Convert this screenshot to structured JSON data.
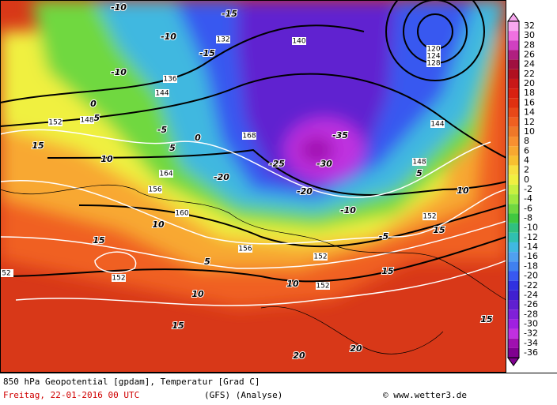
{
  "map": {
    "title": "850 hPa Geopotential [gpdam], Temperatur [Grad C]",
    "date": "Freitag, 22-01-2016  00 UTC",
    "model": "(GFS)  (Analyse)",
    "credit": "© www.wetter3.de",
    "scale": {
      "labels": [
        "32",
        "30",
        "28",
        "26",
        "24",
        "22",
        "20",
        "18",
        "16",
        "14",
        "12",
        "10",
        "8",
        "6",
        "4",
        "2",
        "0",
        "-2",
        "-4",
        "-6",
        "-8",
        "-10",
        "-12",
        "-14",
        "-16",
        "-18",
        "-20",
        "-22",
        "-24",
        "-26",
        "-28",
        "-30",
        "-32",
        "-34",
        "-36"
      ],
      "colors": [
        "#f8a8f0",
        "#f070e0",
        "#d040c0",
        "#b02080",
        "#a01040",
        "#b01020",
        "#c81818",
        "#d82010",
        "#e03010",
        "#e84818",
        "#f06020",
        "#f07828",
        "#f89030",
        "#f8a830",
        "#f8c030",
        "#f8e040",
        "#f0f040",
        "#c8f040",
        "#a0e840",
        "#70d840",
        "#40c840",
        "#30c080",
        "#30c0b0",
        "#40b8e0",
        "#50a0f0",
        "#4080f0",
        "#3858f0",
        "#3030e0",
        "#4020d0",
        "#6020d0",
        "#8020d8",
        "#a020e0",
        "#c030e0",
        "#a010b0",
        "#800090"
      ]
    },
    "temperature_labels": [
      "-10",
      "-15",
      "-10",
      "-15",
      "-10",
      "-5",
      "0",
      "-5",
      "0",
      "5",
      "-20",
      "-25",
      "-30",
      "-35",
      "-20",
      "-10",
      "-5",
      "5",
      "10",
      "15",
      "15",
      "10",
      "5",
      "10",
      "15",
      "15",
      "10",
      "20",
      "20",
      "15",
      "10",
      "15"
    ],
    "geopotential_labels": [
      "152",
      "148",
      "144",
      "136",
      "132",
      "140",
      "128",
      "120",
      "124",
      "144",
      "148",
      "152",
      "152",
      "156",
      "160",
      "156",
      "168",
      "152",
      "152",
      "164",
      "52"
    ]
  }
}
